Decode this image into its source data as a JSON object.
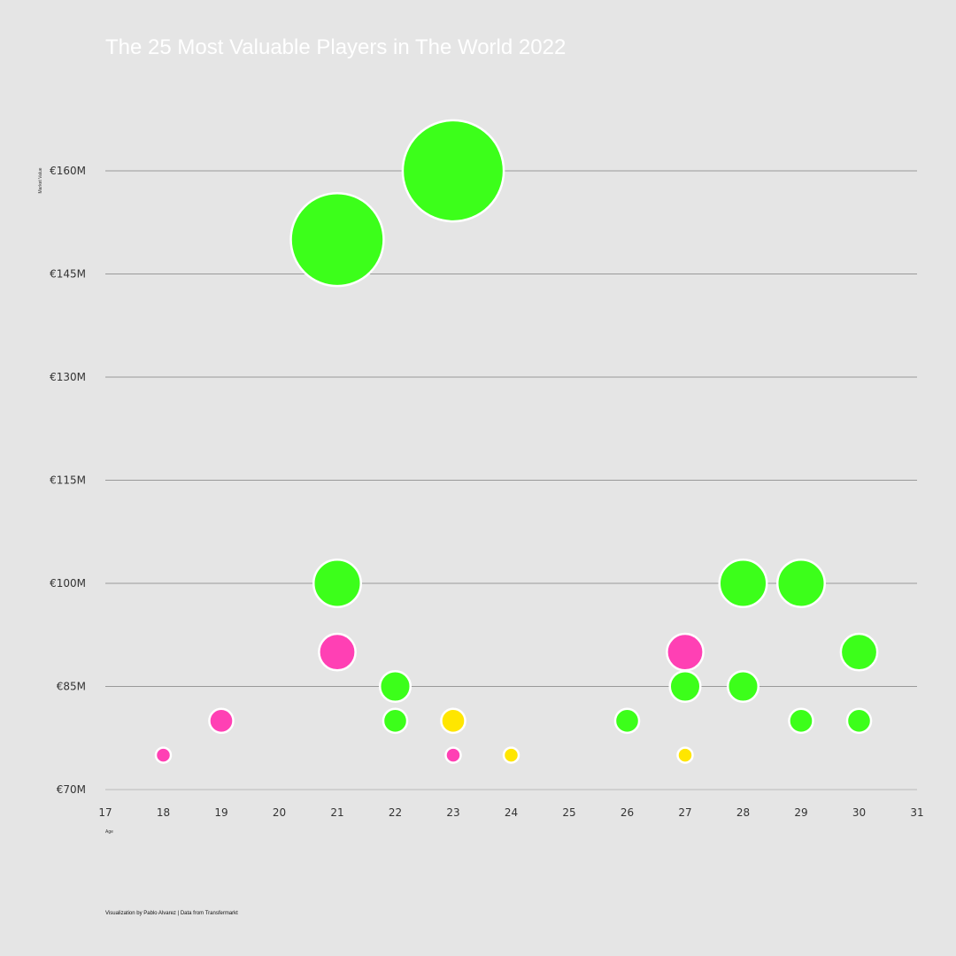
{
  "chart_data": {
    "type": "scatter",
    "variant": "bubble",
    "title": "The 25 Most Valuable Players in The World 2022",
    "xlabel": "Age",
    "ylabel": "Market Value",
    "xlim": [
      17,
      31
    ],
    "ylim": [
      70,
      165
    ],
    "x_ticks": [
      17,
      18,
      19,
      20,
      21,
      22,
      23,
      24,
      25,
      26,
      27,
      28,
      29,
      30,
      31
    ],
    "y_ticks": [
      {
        "value": 70,
        "label": "€70M"
      },
      {
        "value": 85,
        "label": "€85M"
      },
      {
        "value": 100,
        "label": "€100M"
      },
      {
        "value": 115,
        "label": "€115M"
      },
      {
        "value": 130,
        "label": "€130M"
      },
      {
        "value": 145,
        "label": "€145M"
      },
      {
        "value": 160,
        "label": "€160M"
      }
    ],
    "grid": "horizontal",
    "colors": {
      "green": "#3cff1a",
      "pink": "#ff40b4",
      "yellow": "#ffe600"
    },
    "points": [
      {
        "age": 23,
        "value": 160,
        "color": "green"
      },
      {
        "age": 21,
        "value": 150,
        "color": "green"
      },
      {
        "age": 21,
        "value": 100,
        "color": "green"
      },
      {
        "age": 28,
        "value": 100,
        "color": "green"
      },
      {
        "age": 29,
        "value": 100,
        "color": "green"
      },
      {
        "age": 21,
        "value": 90,
        "color": "pink"
      },
      {
        "age": 27,
        "value": 90,
        "color": "pink"
      },
      {
        "age": 30,
        "value": 90,
        "color": "green"
      },
      {
        "age": 22,
        "value": 85,
        "color": "green"
      },
      {
        "age": 27,
        "value": 85,
        "color": "green"
      },
      {
        "age": 28,
        "value": 85,
        "color": "green"
      },
      {
        "age": 19,
        "value": 80,
        "color": "pink"
      },
      {
        "age": 22,
        "value": 80,
        "color": "green"
      },
      {
        "age": 23,
        "value": 80,
        "color": "yellow"
      },
      {
        "age": 26,
        "value": 80,
        "color": "green"
      },
      {
        "age": 29,
        "value": 80,
        "color": "green"
      },
      {
        "age": 30,
        "value": 80,
        "color": "green"
      },
      {
        "age": 18,
        "value": 75,
        "color": "pink"
      },
      {
        "age": 23,
        "value": 75,
        "color": "pink"
      },
      {
        "age": 24,
        "value": 75,
        "color": "yellow"
      },
      {
        "age": 27,
        "value": 75,
        "color": "yellow"
      }
    ]
  },
  "footer": {
    "credit": "Visualization by Pablo Alvarez | Data from Transfermarkt"
  }
}
